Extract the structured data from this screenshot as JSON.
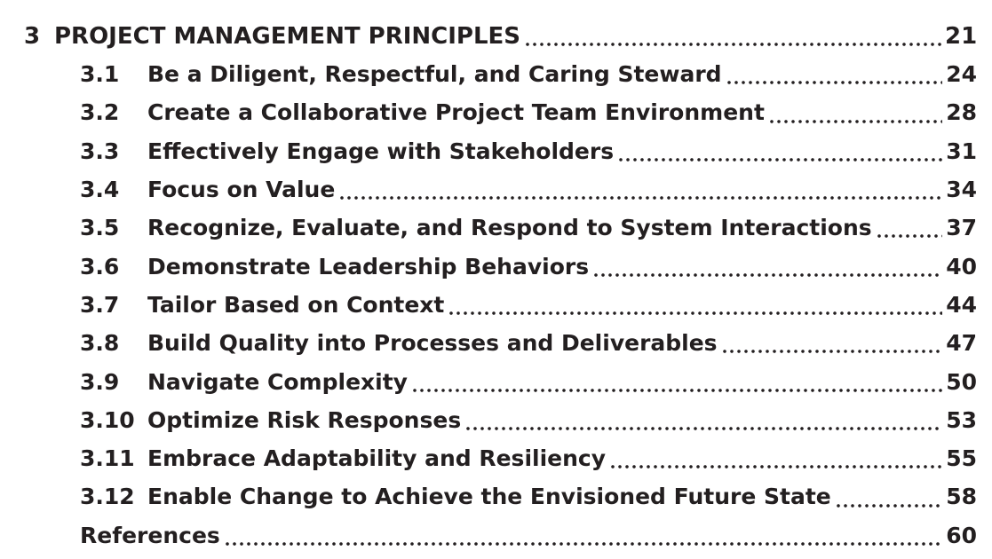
{
  "chapter": {
    "number": "3",
    "title": "PROJECT MANAGEMENT PRINCIPLES",
    "page": "21"
  },
  "sections": [
    {
      "number": "3.1",
      "title": "Be a Diligent, Respectful, and Caring Steward",
      "page": "24"
    },
    {
      "number": "3.2",
      "title": "Create a Collaborative Project Team Environment",
      "page": "28"
    },
    {
      "number": "3.3",
      "title": "Effectively Engage with Stakeholders",
      "page": "31"
    },
    {
      "number": "3.4",
      "title": "Focus on Value",
      "page": "34"
    },
    {
      "number": "3.5",
      "title": "Recognize, Evaluate, and Respond to System Interactions",
      "page": "37"
    },
    {
      "number": "3.6",
      "title": "Demonstrate Leadership Behaviors",
      "page": "40"
    },
    {
      "number": "3.7",
      "title": "Tailor Based on Context",
      "page": "44"
    },
    {
      "number": "3.8",
      "title": "Build Quality into Processes and Deliverables",
      "page": "47"
    },
    {
      "number": "3.9",
      "title": "Navigate Complexity",
      "page": "50"
    },
    {
      "number": "3.10",
      "title": "Optimize Risk Responses",
      "page": "53"
    },
    {
      "number": "3.11",
      "title": "Embrace Adaptability and Resiliency",
      "page": "55"
    },
    {
      "number": "3.12",
      "title": "Enable Change to Achieve the Envisioned Future State",
      "page": "58"
    }
  ],
  "references": {
    "title": "References",
    "page": "60"
  }
}
